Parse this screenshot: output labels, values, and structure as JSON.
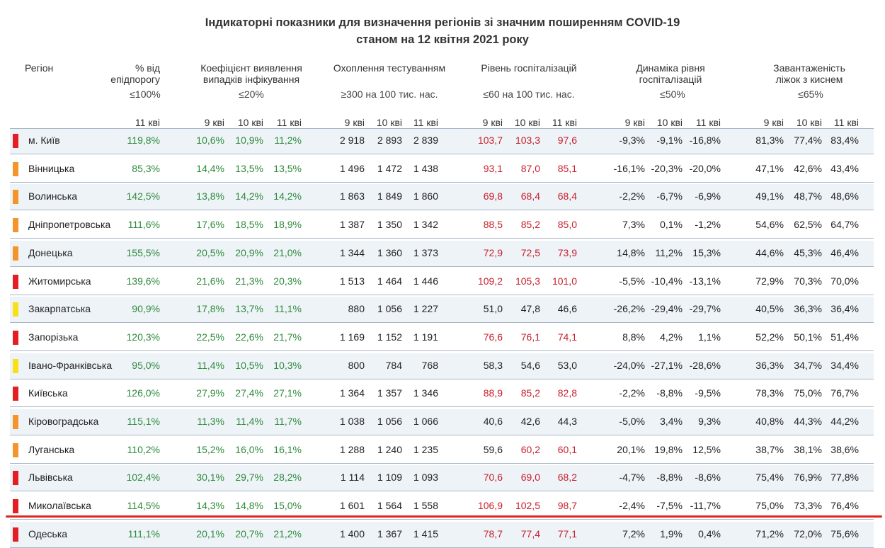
{
  "title": {
    "line1": "Індикаторні показники для визначення регіонів зі значним поширенням COVID-19",
    "line2": "станом на 12 квітня 2021 року"
  },
  "headers": {
    "region": "Регіон",
    "pct": {
      "l1": "% від",
      "l2": "епідпорогу",
      "crit": "≤100%",
      "days": [
        "11 кві"
      ]
    },
    "coef": {
      "l1": "Коефіцієнт виявлення",
      "l2": "випадків інфікування",
      "crit": "≤20%",
      "days": [
        "9 кві",
        "10 кві",
        "11 кві"
      ]
    },
    "test": {
      "l1": "Охоплення тестуванням",
      "crit": "≥300 на 100 тис. нас.",
      "days": [
        "9 кві",
        "10 кві",
        "11 кві"
      ]
    },
    "hosp": {
      "l1": "Рівень госпіталізацій",
      "crit": "≤60 на 100 тис. нас.",
      "days": [
        "9 кві",
        "10 кві",
        "11 кві"
      ]
    },
    "dyn": {
      "l1": "Динаміка рівня",
      "l2": "госпіталізацій",
      "crit": "≤50%",
      "days": [
        "9 кві",
        "10 кві",
        "11 кві"
      ]
    },
    "beds": {
      "l1": "Завантаженість",
      "l2": "ліжок з киснем",
      "crit": "≤65%",
      "days": [
        "9 кві",
        "10 кві",
        "11 кві"
      ]
    }
  },
  "colors": {
    "red": "#e31e24",
    "orange": "#f4952a",
    "yellow": "#f7e017",
    "green_text": "#2e8b3b",
    "red_text": "#c8202c"
  },
  "rows": [
    {
      "region": "м. Київ",
      "level": "red",
      "pct": "119,8%",
      "coef": [
        "10,6%",
        "10,9%",
        "11,2%"
      ],
      "test": [
        "2 918",
        "2 893",
        "2 839"
      ],
      "hosp": [
        "103,7",
        "103,3",
        "97,6"
      ],
      "hosp_color": [
        "red",
        "red",
        "red"
      ],
      "dyn": [
        "-9,3%",
        "-9,1%",
        "-16,8%"
      ],
      "beds": [
        "81,3%",
        "77,4%",
        "83,4%"
      ]
    },
    {
      "region": "Вінницька",
      "level": "orange",
      "pct": "85,3%",
      "coef": [
        "14,4%",
        "13,5%",
        "13,5%"
      ],
      "test": [
        "1 496",
        "1 472",
        "1 438"
      ],
      "hosp": [
        "93,1",
        "87,0",
        "85,1"
      ],
      "hosp_color": [
        "red",
        "red",
        "red"
      ],
      "dyn": [
        "-16,1%",
        "-20,3%",
        "-20,0%"
      ],
      "beds": [
        "47,1%",
        "42,6%",
        "43,4%"
      ]
    },
    {
      "region": "Волинська",
      "level": "orange",
      "pct": "142,5%",
      "coef": [
        "13,8%",
        "14,2%",
        "14,2%"
      ],
      "test": [
        "1 863",
        "1 849",
        "1 860"
      ],
      "hosp": [
        "69,8",
        "68,4",
        "68,4"
      ],
      "hosp_color": [
        "red",
        "red",
        "red"
      ],
      "dyn": [
        "-2,2%",
        "-6,7%",
        "-6,9%"
      ],
      "beds": [
        "49,1%",
        "48,7%",
        "48,6%"
      ]
    },
    {
      "region": "Дніпропетровська",
      "level": "orange",
      "pct": "111,6%",
      "coef": [
        "17,6%",
        "18,5%",
        "18,9%"
      ],
      "test": [
        "1 387",
        "1 350",
        "1 342"
      ],
      "hosp": [
        "88,5",
        "85,2",
        "85,0"
      ],
      "hosp_color": [
        "red",
        "red",
        "red"
      ],
      "dyn": [
        "7,3%",
        "0,1%",
        "-1,2%"
      ],
      "beds": [
        "54,6%",
        "62,5%",
        "64,7%"
      ]
    },
    {
      "region": "Донецька",
      "level": "orange",
      "pct": "155,5%",
      "coef": [
        "20,5%",
        "20,9%",
        "21,0%"
      ],
      "test": [
        "1 344",
        "1 360",
        "1 373"
      ],
      "hosp": [
        "72,9",
        "72,5",
        "73,9"
      ],
      "hosp_color": [
        "red",
        "red",
        "red"
      ],
      "dyn": [
        "14,8%",
        "11,2%",
        "15,3%"
      ],
      "beds": [
        "44,6%",
        "45,3%",
        "46,4%"
      ]
    },
    {
      "region": "Житомирська",
      "level": "red",
      "pct": "139,6%",
      "coef": [
        "21,6%",
        "21,3%",
        "20,3%"
      ],
      "test": [
        "1 513",
        "1 464",
        "1 446"
      ],
      "hosp": [
        "109,2",
        "105,3",
        "101,0"
      ],
      "hosp_color": [
        "red",
        "red",
        "red"
      ],
      "dyn": [
        "-5,5%",
        "-10,4%",
        "-13,1%"
      ],
      "beds": [
        "72,9%",
        "70,3%",
        "70,0%"
      ]
    },
    {
      "region": "Закарпатська",
      "level": "yellow",
      "pct": "90,9%",
      "coef": [
        "17,8%",
        "13,7%",
        "11,1%"
      ],
      "test": [
        "880",
        "1 056",
        "1 227"
      ],
      "hosp": [
        "51,0",
        "47,8",
        "46,6"
      ],
      "hosp_color": [
        "dark",
        "dark",
        "dark"
      ],
      "dyn": [
        "-26,2%",
        "-29,4%",
        "-29,7%"
      ],
      "beds": [
        "40,5%",
        "36,3%",
        "36,4%"
      ]
    },
    {
      "region": "Запорізька",
      "level": "red",
      "pct": "120,3%",
      "coef": [
        "22,5%",
        "22,6%",
        "21,7%"
      ],
      "test": [
        "1 169",
        "1 152",
        "1 191"
      ],
      "hosp": [
        "76,6",
        "76,1",
        "74,1"
      ],
      "hosp_color": [
        "red",
        "red",
        "red"
      ],
      "dyn": [
        "8,8%",
        "4,2%",
        "1,1%"
      ],
      "beds": [
        "52,2%",
        "50,1%",
        "51,4%"
      ]
    },
    {
      "region": "Івано-Франківська",
      "level": "yellow",
      "pct": "95,0%",
      "coef": [
        "11,4%",
        "10,5%",
        "10,3%"
      ],
      "test": [
        "800",
        "784",
        "768"
      ],
      "hosp": [
        "58,3",
        "54,6",
        "53,0"
      ],
      "hosp_color": [
        "dark",
        "dark",
        "dark"
      ],
      "dyn": [
        "-24,0%",
        "-27,1%",
        "-28,6%"
      ],
      "beds": [
        "36,3%",
        "34,7%",
        "34,4%"
      ]
    },
    {
      "region": "Київська",
      "level": "red",
      "pct": "126,0%",
      "coef": [
        "27,9%",
        "27,4%",
        "27,1%"
      ],
      "test": [
        "1 364",
        "1 357",
        "1 346"
      ],
      "hosp": [
        "88,9",
        "85,2",
        "82,8"
      ],
      "hosp_color": [
        "red",
        "red",
        "red"
      ],
      "dyn": [
        "-2,2%",
        "-8,8%",
        "-9,5%"
      ],
      "beds": [
        "78,3%",
        "75,0%",
        "76,7%"
      ]
    },
    {
      "region": "Кіровоградська",
      "level": "orange",
      "pct": "115,1%",
      "coef": [
        "11,3%",
        "11,4%",
        "11,7%"
      ],
      "test": [
        "1 038",
        "1 056",
        "1 066"
      ],
      "hosp": [
        "40,6",
        "42,6",
        "44,3"
      ],
      "hosp_color": [
        "dark",
        "dark",
        "dark"
      ],
      "dyn": [
        "-5,0%",
        "3,4%",
        "9,3%"
      ],
      "beds": [
        "40,8%",
        "44,3%",
        "44,2%"
      ]
    },
    {
      "region": "Луганська",
      "level": "orange",
      "pct": "110,2%",
      "coef": [
        "15,2%",
        "16,0%",
        "16,1%"
      ],
      "test": [
        "1 288",
        "1 240",
        "1 235"
      ],
      "hosp": [
        "59,6",
        "60,2",
        "60,1"
      ],
      "hosp_color": [
        "dark",
        "red",
        "red"
      ],
      "dyn": [
        "20,1%",
        "19,8%",
        "12,5%"
      ],
      "beds": [
        "38,7%",
        "38,1%",
        "38,6%"
      ]
    },
    {
      "region": "Львівська",
      "level": "red",
      "pct": "102,4%",
      "coef": [
        "30,1%",
        "29,7%",
        "28,2%"
      ],
      "test": [
        "1 114",
        "1 109",
        "1 093"
      ],
      "hosp": [
        "70,6",
        "69,0",
        "68,2"
      ],
      "hosp_color": [
        "red",
        "red",
        "red"
      ],
      "dyn": [
        "-4,7%",
        "-8,8%",
        "-8,6%"
      ],
      "beds": [
        "75,4%",
        "76,9%",
        "77,8%"
      ]
    },
    {
      "region": "Миколаївська",
      "level": "red",
      "pct": "114,5%",
      "coef": [
        "14,3%",
        "14,8%",
        "15,0%"
      ],
      "test": [
        "1 601",
        "1 564",
        "1 558"
      ],
      "hosp": [
        "106,9",
        "102,5",
        "98,7"
      ],
      "hosp_color": [
        "red",
        "red",
        "red"
      ],
      "dyn": [
        "-2,4%",
        "-7,5%",
        "-11,7%"
      ],
      "beds": [
        "75,0%",
        "73,3%",
        "76,4%"
      ]
    },
    {
      "region": "Одеська",
      "level": "red",
      "pct": "111,1%",
      "coef": [
        "20,1%",
        "20,7%",
        "21,2%"
      ],
      "test": [
        "1 400",
        "1 367",
        "1 415"
      ],
      "hosp": [
        "78,7",
        "77,4",
        "77,1"
      ],
      "hosp_color": [
        "red",
        "red",
        "red"
      ],
      "dyn": [
        "7,2%",
        "1,9%",
        "0,4%"
      ],
      "beds": [
        "71,2%",
        "72,0%",
        "75,6%"
      ]
    }
  ]
}
